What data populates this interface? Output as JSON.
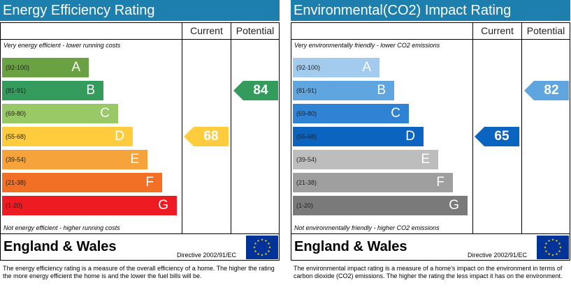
{
  "chart_data": [
    {
      "type": "bar",
      "title": "Energy Efficiency Rating",
      "columns": [
        "Current",
        "Potential"
      ],
      "top_note": "Very energy efficient - lower running costs",
      "bottom_note": "Not energy efficient - higher running costs",
      "bands": [
        {
          "letter": "A",
          "range": "(92-100)",
          "color": "#6aa143"
        },
        {
          "letter": "B",
          "range": "(81-91)",
          "color": "#339b5b"
        },
        {
          "letter": "C",
          "range": "(69-80)",
          "color": "#99c867"
        },
        {
          "letter": "D",
          "range": "(55-68)",
          "color": "#ffcc3d"
        },
        {
          "letter": "E",
          "range": "(39-54)",
          "color": "#f7a33c"
        },
        {
          "letter": "F",
          "range": "(21-38)",
          "color": "#f26f26"
        },
        {
          "letter": "G",
          "range": "(1-20)",
          "color": "#ee1b22"
        }
      ],
      "current": {
        "value": 68,
        "band": "D",
        "color": "#ffcc3d"
      },
      "potential": {
        "value": 84,
        "band": "B",
        "color": "#339b5b"
      },
      "region": "England & Wales",
      "directive": "Directive 2002/91/EC",
      "description": "The energy efficiency rating is a measure of the overall efficiency of a home. The higher the rating the more energy efficient the home is and the lower the fuel bills will be."
    },
    {
      "type": "bar",
      "title": "Environmental(CO2) Impact Rating",
      "columns": [
        "Current",
        "Potential"
      ],
      "top_note": "Very environmentally friendly - lower CO2 emissions",
      "bottom_note": "Not environmentally friendly - higher CO2 emissions",
      "bands": [
        {
          "letter": "A",
          "range": "(92-100)",
          "color": "#a2cbee"
        },
        {
          "letter": "B",
          "range": "(81-91)",
          "color": "#5fa5e0"
        },
        {
          "letter": "C",
          "range": "(69-80)",
          "color": "#2f82d4"
        },
        {
          "letter": "D",
          "range": "(55-68)",
          "color": "#0b64c0"
        },
        {
          "letter": "E",
          "range": "(39-54)",
          "color": "#bdbdbd"
        },
        {
          "letter": "F",
          "range": "(21-38)",
          "color": "#9f9f9f"
        },
        {
          "letter": "G",
          "range": "(1-20)",
          "color": "#7a7a7a"
        }
      ],
      "current": {
        "value": 65,
        "band": "D",
        "color": "#0b64c0"
      },
      "potential": {
        "value": 82,
        "band": "B",
        "color": "#5fa5e0"
      },
      "region": "England & Wales",
      "directive": "Directive 2002/91/EC",
      "description": "The environmental impact rating is a measure of a home's impact on the environment in terms of carbon dioxide (CO2) emissions. The higher the rating the less impact it has on the environment."
    }
  ],
  "icons": {
    "eu_flag": "eu-flag-icon"
  },
  "colors": {
    "title_bar": "#1d7fae",
    "eu_blue": "#003399",
    "eu_star": "#ffcc00"
  }
}
